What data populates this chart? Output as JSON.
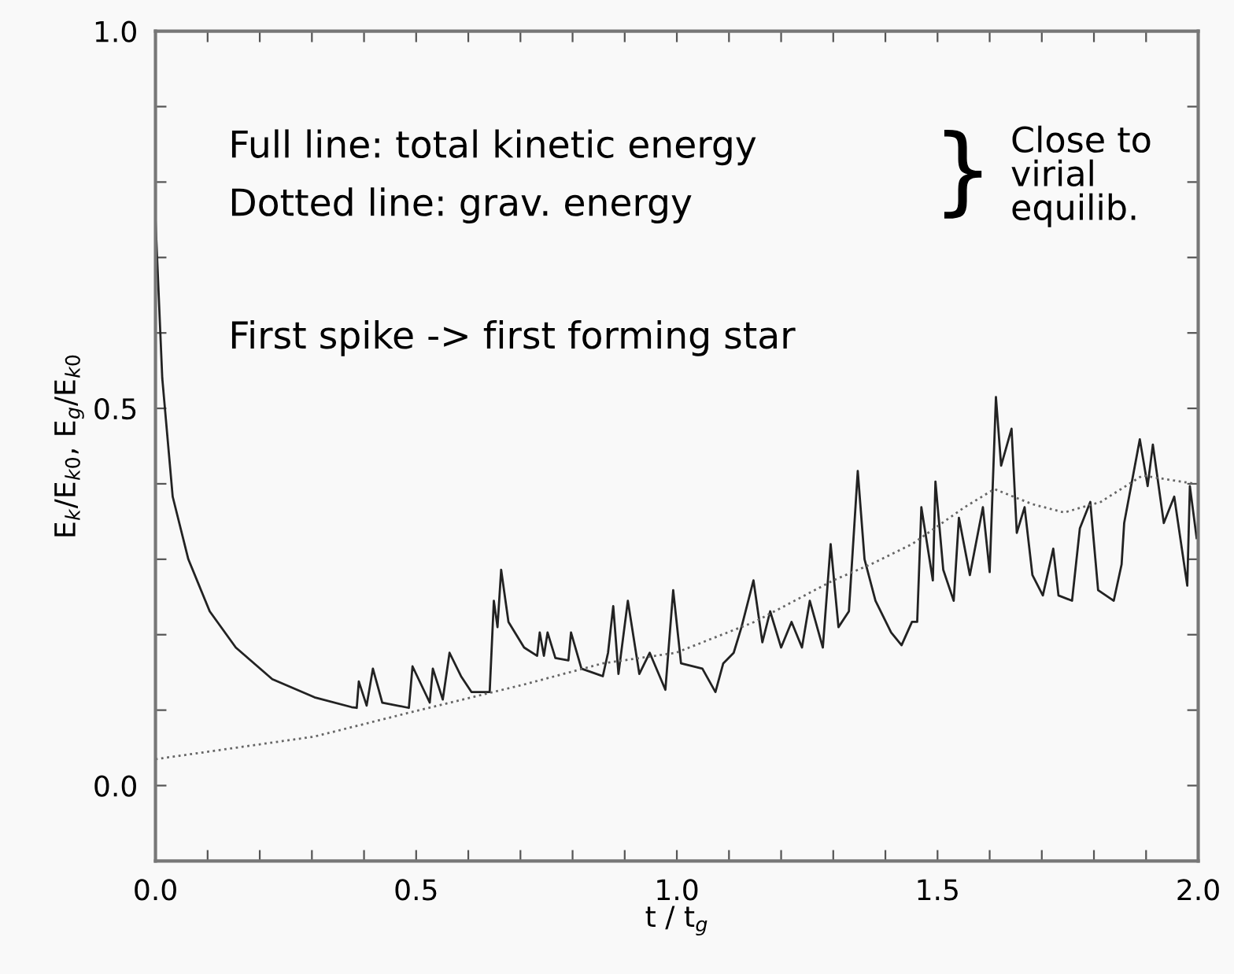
{
  "chart_data": {
    "type": "line",
    "xlabel": "t / t$_{g}$",
    "ylabel": "E$_{k}$/E$_{k0}$, E$_{g}$/E$_{k0}$",
    "xlim": [
      0,
      2.0
    ],
    "ylim": [
      -0.1,
      1.0
    ],
    "xticks": [
      {
        "value": 0,
        "label": "0.0"
      },
      {
        "value": 0.1,
        "label": null
      },
      {
        "value": 0.2,
        "label": null
      },
      {
        "value": 0.3,
        "label": null
      },
      {
        "value": 0.4,
        "label": null
      },
      {
        "value": 0.5,
        "label": "0.5"
      },
      {
        "value": 0.6,
        "label": null
      },
      {
        "value": 0.7,
        "label": null
      },
      {
        "value": 0.8,
        "label": null
      },
      {
        "value": 0.9,
        "label": null
      },
      {
        "value": 1.0,
        "label": "1.0"
      },
      {
        "value": 1.1,
        "label": null
      },
      {
        "value": 1.2,
        "label": null
      },
      {
        "value": 1.3,
        "label": null
      },
      {
        "value": 1.4,
        "label": null
      },
      {
        "value": 1.5,
        "label": "1.5"
      },
      {
        "value": 1.6,
        "label": null
      },
      {
        "value": 1.7,
        "label": null
      },
      {
        "value": 1.8,
        "label": null
      },
      {
        "value": 1.9,
        "label": null
      },
      {
        "value": 2.0,
        "label": "2.0"
      }
    ],
    "yticks": [
      {
        "value": 0,
        "label": "0.0"
      },
      {
        "value": 0.1,
        "label": null
      },
      {
        "value": 0.2,
        "label": null
      },
      {
        "value": 0.3,
        "label": null
      },
      {
        "value": 0.4,
        "label": null
      },
      {
        "value": 0.5,
        "label": "0.5"
      },
      {
        "value": 0.6,
        "label": null
      },
      {
        "value": 0.7,
        "label": null
      },
      {
        "value": 0.8,
        "label": null
      },
      {
        "value": 0.9,
        "label": null
      },
      {
        "value": 1.0,
        "label": "1.0"
      }
    ],
    "grid": false,
    "legend": false,
    "annotations": [
      "Full line: total kinetic energy",
      "Dotted line: grav. energy",
      "}",
      "Close to\nvirial\nequilib.",
      "First spike -> first forming star"
    ],
    "series": [
      {
        "color": "#222222",
        "line_style": "solid",
        "x": [
          0,
          0.013,
          0.033,
          0.063,
          0.104,
          0.154,
          0.224,
          0.305,
          0.376,
          0.386,
          0.39,
          0.405,
          0.417,
          0.435,
          0.486,
          0.493,
          0.526,
          0.532,
          0.551,
          0.564,
          0.586,
          0.606,
          0.641,
          0.649,
          0.656,
          0.663,
          0.677,
          0.707,
          0.732,
          0.737,
          0.745,
          0.752,
          0.767,
          0.792,
          0.797,
          0.817,
          0.858,
          0.868,
          0.878,
          0.888,
          0.906,
          0.928,
          0.948,
          0.978,
          0.993,
          1.008,
          1.049,
          1.074,
          1.089,
          1.109,
          1.124,
          1.147,
          1.164,
          1.179,
          1.2,
          1.22,
          1.24,
          1.255,
          1.28,
          1.295,
          1.31,
          1.33,
          1.347,
          1.36,
          1.381,
          1.411,
          1.431,
          1.451,
          1.461,
          1.469,
          1.491,
          1.496,
          1.511,
          1.531,
          1.541,
          1.562,
          1.587,
          1.6,
          1.612,
          1.622,
          1.642,
          1.652,
          1.667,
          1.682,
          1.702,
          1.722,
          1.732,
          1.758,
          1.773,
          1.793,
          1.808,
          1.838,
          1.853,
          1.858,
          1.888,
          1.903,
          1.913,
          1.934,
          1.954,
          1.979,
          1.984,
          1.997
        ],
        "values": [
          0.75,
          0.54,
          0.383,
          0.3,
          0.231,
          0.183,
          0.141,
          0.117,
          0.104,
          0.103,
          0.138,
          0.106,
          0.155,
          0.11,
          0.103,
          0.158,
          0.11,
          0.155,
          0.114,
          0.176,
          0.145,
          0.124,
          0.124,
          0.245,
          0.21,
          0.286,
          0.217,
          0.183,
          0.172,
          0.203,
          0.172,
          0.203,
          0.169,
          0.166,
          0.203,
          0.155,
          0.145,
          0.176,
          0.238,
          0.148,
          0.245,
          0.148,
          0.176,
          0.127,
          0.259,
          0.162,
          0.155,
          0.124,
          0.162,
          0.176,
          0.21,
          0.272,
          0.19,
          0.231,
          0.183,
          0.217,
          0.183,
          0.245,
          0.183,
          0.32,
          0.21,
          0.231,
          0.417,
          0.3,
          0.245,
          0.203,
          0.186,
          0.217,
          0.217,
          0.369,
          0.272,
          0.403,
          0.286,
          0.245,
          0.355,
          0.279,
          0.369,
          0.283,
          0.515,
          0.424,
          0.473,
          0.335,
          0.369,
          0.279,
          0.252,
          0.314,
          0.252,
          0.245,
          0.341,
          0.376,
          0.259,
          0.245,
          0.293,
          0.348,
          0.459,
          0.397,
          0.452,
          0.348,
          0.383,
          0.265,
          0.397,
          0.328
        ]
      },
      {
        "color": "#666666",
        "line_style": "dotted",
        "x": [
          0,
          0.305,
          0.506,
          0.707,
          0.858,
          0.998,
          1.149,
          1.3,
          1.371,
          1.451,
          1.552,
          1.609,
          1.682,
          1.743,
          1.813,
          1.893,
          1.994
        ],
        "values": [
          0.035,
          0.065,
          0.1,
          0.134,
          0.162,
          0.176,
          0.217,
          0.272,
          0.293,
          0.32,
          0.369,
          0.393,
          0.373,
          0.362,
          0.376,
          0.411,
          0.4
        ]
      }
    ]
  }
}
